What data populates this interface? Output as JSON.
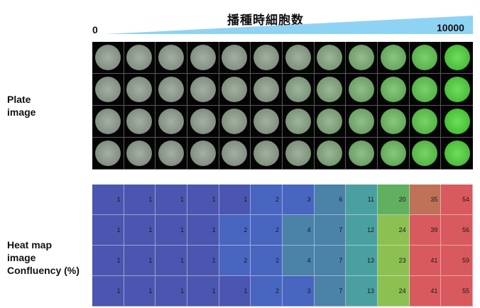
{
  "header": {
    "title": "播種時細胞数",
    "range_min": "0",
    "range_max": "10000",
    "wedge_color": "#8fd3f4"
  },
  "labels": {
    "plate": "Plate\nimage",
    "heatmap": "Heat map\nimage\nConfluency (%)"
  },
  "plate_colors": {
    "gray": "#8c8c8c",
    "green": "#4cc23a"
  },
  "heatmap_palette": {
    "low": "#4a56b0",
    "blue2": "#4866c0",
    "teal": "#4a82a8",
    "teal2": "#4aa0a0",
    "green": "#60b060",
    "yellowgreen": "#8cc050",
    "brown": "#c07258",
    "red": "#d85a5e"
  },
  "chart_data": {
    "type": "heatmap",
    "title": "播種時細胞数",
    "x_range": [
      "0",
      "10000"
    ],
    "rows": 4,
    "cols": 12,
    "values": [
      [
        1,
        1,
        1,
        1,
        1,
        2,
        3,
        6,
        11,
        20,
        35,
        54
      ],
      [
        1,
        1,
        1,
        1,
        2,
        2,
        4,
        7,
        12,
        24,
        39,
        56
      ],
      [
        1,
        1,
        1,
        1,
        2,
        2,
        4,
        7,
        13,
        23,
        41,
        59
      ],
      [
        1,
        1,
        1,
        1,
        1,
        2,
        3,
        7,
        13,
        24,
        41,
        55
      ]
    ]
  }
}
